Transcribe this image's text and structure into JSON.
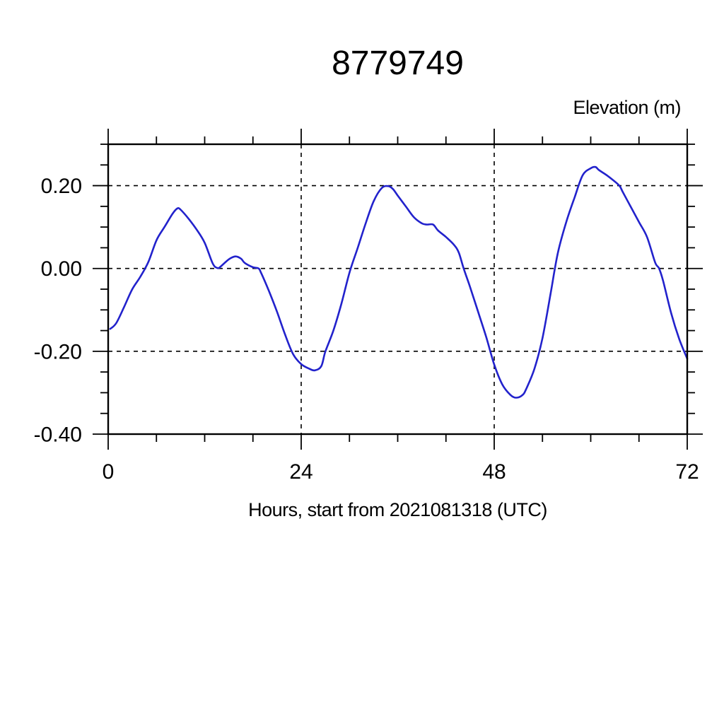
{
  "colors": {
    "background": "#ffffff",
    "frame": "#000000",
    "text": "#000000",
    "line": "#2222cc"
  },
  "chart_data": {
    "type": "line",
    "title": "8779749",
    "xlabel": "Hours, start from 2021081318 (UTC)",
    "ylabel": "Elevation (m)",
    "xlim": [
      0,
      72
    ],
    "ylim": [
      -0.4,
      0.3
    ],
    "x_major_ticks": [
      0,
      24,
      48,
      72
    ],
    "x_tick_labels": [
      "0",
      "24",
      "48",
      "72"
    ],
    "x_minor_tick_step": 6,
    "y_major_ticks": [
      -0.4,
      -0.2,
      0,
      0.2
    ],
    "y_tick_labels": [
      "-0.40",
      "-0.20",
      "0.00",
      "0.20"
    ],
    "y_minor_tick_step": 0.05,
    "grid": {
      "x_values": [
        24,
        48
      ],
      "y_values": [
        -0.2,
        0,
        0.2
      ],
      "style": "dashed"
    },
    "legend": "none",
    "line_color": "#2222cc",
    "series": [
      {
        "name": "elevation",
        "x": [
          0.25,
          1,
          2,
          3,
          4,
          5,
          6,
          7,
          8,
          8.6,
          9,
          10,
          11,
          12,
          13,
          13.6,
          14,
          15,
          15.8,
          16.5,
          17,
          18,
          18.7,
          19,
          20,
          21,
          22,
          23,
          24,
          25,
          25.7,
          26.5,
          27,
          28,
          29,
          30,
          31,
          32,
          33,
          34,
          34.8,
          35.4,
          36,
          37,
          38,
          39,
          39.6,
          40.4,
          41,
          42,
          43,
          43.6,
          44.2,
          45,
          46,
          47,
          48,
          49,
          50,
          50.7,
          51.5,
          52,
          53,
          54,
          55,
          55.5,
          56,
          57,
          58,
          59,
          60,
          60.6,
          61,
          62,
          62.8,
          63.6,
          64,
          65,
          66,
          67,
          68,
          68.5,
          69,
          70,
          71,
          72
        ],
        "y": [
          -0.146,
          -0.132,
          -0.092,
          -0.05,
          -0.02,
          0.016,
          0.068,
          0.1,
          0.132,
          0.145,
          0.142,
          0.12,
          0.094,
          0.062,
          0.012,
          0.001,
          0.005,
          0.022,
          0.029,
          0.024,
          0.013,
          0.003,
          0,
          -0.01,
          -0.055,
          -0.105,
          -0.16,
          -0.207,
          -0.231,
          -0.242,
          -0.246,
          -0.236,
          -0.201,
          -0.15,
          -0.085,
          -0.01,
          0.048,
          0.108,
          0.162,
          0.194,
          0.199,
          0.192,
          0.176,
          0.15,
          0.124,
          0.109,
          0.106,
          0.106,
          0.092,
          0.076,
          0.057,
          0.038,
          0,
          -0.045,
          -0.105,
          -0.165,
          -0.232,
          -0.28,
          -0.305,
          -0.312,
          -0.306,
          -0.29,
          -0.242,
          -0.168,
          -0.062,
          -0.005,
          0.045,
          0.115,
          0.172,
          0.225,
          0.242,
          0.245,
          0.238,
          0.225,
          0.213,
          0.199,
          0.184,
          0.148,
          0.112,
          0.076,
          0.015,
          0,
          -0.03,
          -0.108,
          -0.17,
          -0.218
        ]
      }
    ]
  }
}
